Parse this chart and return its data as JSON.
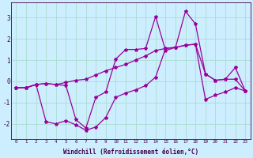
{
  "xlabel": "Windchill (Refroidissement éolien,°C)",
  "bg_color": "#cceeff",
  "grid_color": "#aaddcc",
  "line_color": "#990099",
  "x": [
    0,
    1,
    2,
    3,
    4,
    5,
    6,
    7,
    8,
    9,
    10,
    11,
    12,
    13,
    14,
    15,
    16,
    17,
    18,
    19,
    20,
    21,
    22,
    23
  ],
  "y_top": [
    -0.3,
    -0.3,
    -0.15,
    -0.1,
    -0.15,
    -0.2,
    -1.8,
    -2.2,
    -0.75,
    -0.5,
    1.05,
    1.5,
    1.5,
    1.55,
    3.05,
    1.45,
    1.6,
    3.3,
    2.7,
    0.35,
    0.05,
    0.1,
    0.65,
    -0.45
  ],
  "y_mid": [
    -0.3,
    -0.3,
    -0.15,
    -0.1,
    -0.15,
    -0.05,
    0.05,
    0.1,
    0.3,
    0.5,
    0.65,
    0.8,
    1.0,
    1.2,
    1.45,
    1.55,
    1.6,
    1.7,
    1.75,
    0.35,
    0.05,
    0.1,
    0.1,
    -0.45
  ],
  "y_bot": [
    -0.3,
    -0.3,
    -0.15,
    -1.9,
    -2.0,
    -1.85,
    -2.05,
    -2.3,
    -2.15,
    -1.7,
    -0.75,
    -0.55,
    -0.4,
    -0.2,
    0.2,
    1.55,
    1.6,
    1.7,
    1.75,
    -0.85,
    -0.65,
    -0.5,
    -0.3,
    -0.45
  ],
  "ylim": [
    -2.7,
    3.7
  ],
  "yticks": [
    -2,
    -1,
    0,
    1,
    2,
    3
  ],
  "marker": "*",
  "markersize": 3,
  "linewidth": 0.9
}
